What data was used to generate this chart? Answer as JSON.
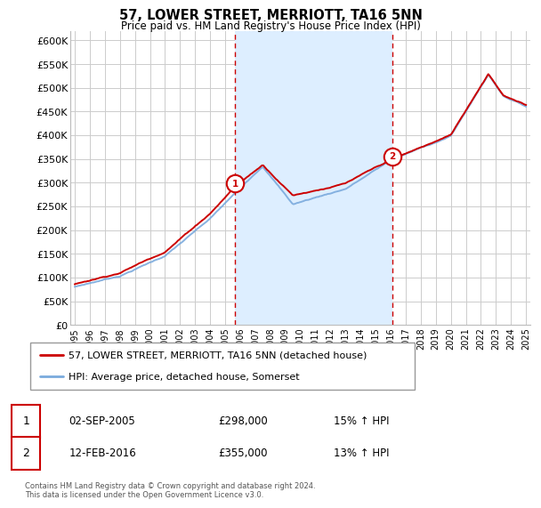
{
  "title": "57, LOWER STREET, MERRIOTT, TA16 5NN",
  "subtitle": "Price paid vs. HM Land Registry's House Price Index (HPI)",
  "red_line_label": "57, LOWER STREET, MERRIOTT, TA16 5NN (detached house)",
  "blue_line_label": "HPI: Average price, detached house, Somerset",
  "sale1_date": "02-SEP-2005",
  "sale1_price": "£298,000",
  "sale1_hpi": "15% ↑ HPI",
  "sale1_year": 2005.67,
  "sale1_value": 298000,
  "sale2_date": "12-FEB-2016",
  "sale2_price": "£355,000",
  "sale2_hpi": "13% ↑ HPI",
  "sale2_year": 2016.12,
  "sale2_value": 355000,
  "footer": "Contains HM Land Registry data © Crown copyright and database right 2024.\nThis data is licensed under the Open Government Licence v3.0.",
  "ylim": [
    0,
    620000
  ],
  "yticks": [
    0,
    50000,
    100000,
    150000,
    200000,
    250000,
    300000,
    350000,
    400000,
    450000,
    500000,
    550000,
    600000
  ],
  "ytick_labels": [
    "£0",
    "£50K",
    "£100K",
    "£150K",
    "£200K",
    "£250K",
    "£300K",
    "£350K",
    "£400K",
    "£450K",
    "£500K",
    "£550K",
    "£600K"
  ],
  "red_color": "#cc0000",
  "blue_color": "#7aaadd",
  "shade_color": "#ddeeff",
  "background_color": "#ffffff",
  "grid_color": "#cccccc",
  "vline_color": "#cc0000",
  "xlim_left": 1994.7,
  "xlim_right": 2025.3,
  "xtick_start": 1995,
  "xtick_end": 2025
}
